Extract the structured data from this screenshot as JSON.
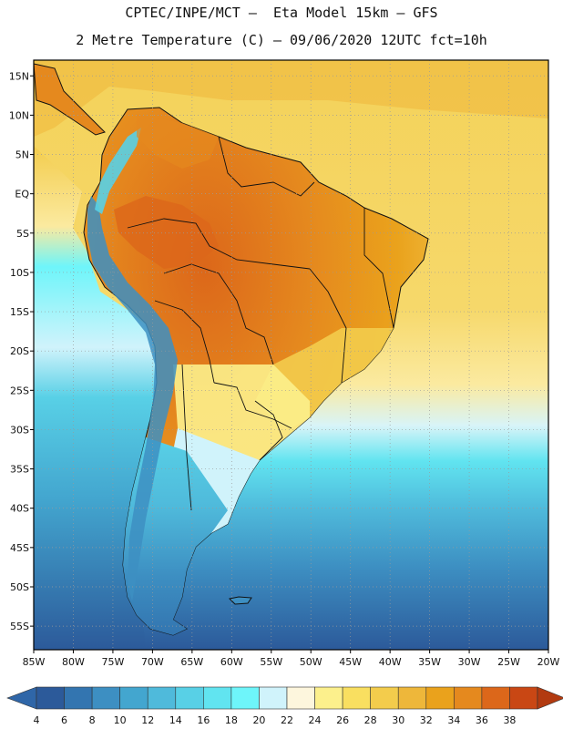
{
  "header": {
    "line1": "CPTEC/INPE/MCT –  Eta Model 15km – GFS",
    "line2": "2 Metre Temperature (C) – 09/06/2020 12UTC fct=10h"
  },
  "map": {
    "lon_range": [
      -85,
      -20
    ],
    "lat_range": [
      -58,
      17
    ],
    "lat_labels": [
      "15N",
      "10N",
      "5N",
      "EQ",
      "5S",
      "10S",
      "15S",
      "20S",
      "25S",
      "30S",
      "35S",
      "40S",
      "45S",
      "50S",
      "55S"
    ],
    "lat_values": [
      15,
      10,
      5,
      0,
      -5,
      -10,
      -15,
      -20,
      -25,
      -30,
      -35,
      -40,
      -45,
      -50,
      -55
    ],
    "lon_labels": [
      "85W",
      "80W",
      "75W",
      "70W",
      "65W",
      "60W",
      "55W",
      "50W",
      "45W",
      "40W",
      "35W",
      "30W",
      "25W",
      "20W"
    ],
    "lon_values": [
      -85,
      -80,
      -75,
      -70,
      -65,
      -60,
      -55,
      -50,
      -45,
      -40,
      -35,
      -30,
      -25,
      -20
    ]
  },
  "colorbar": {
    "labels": [
      "4",
      "6",
      "8",
      "10",
      "12",
      "14",
      "16",
      "18",
      "20",
      "22",
      "24",
      "26",
      "28",
      "30",
      "32",
      "34",
      "36",
      "38"
    ],
    "colors": [
      "#2c5a9a",
      "#3375b0",
      "#3d8fc2",
      "#43a6cf",
      "#4fbadb",
      "#58d0e6",
      "#61e4f0",
      "#6ef5fa",
      "#d0f3fb",
      "#fdf6dd",
      "#fcf08c",
      "#f9df60",
      "#f3cc4c",
      "#eeb73a",
      "#eaa21c",
      "#e5891e",
      "#dc671a",
      "#c94714"
    ],
    "low_color": "#2f66a8",
    "high_color": "#b23a10"
  }
}
